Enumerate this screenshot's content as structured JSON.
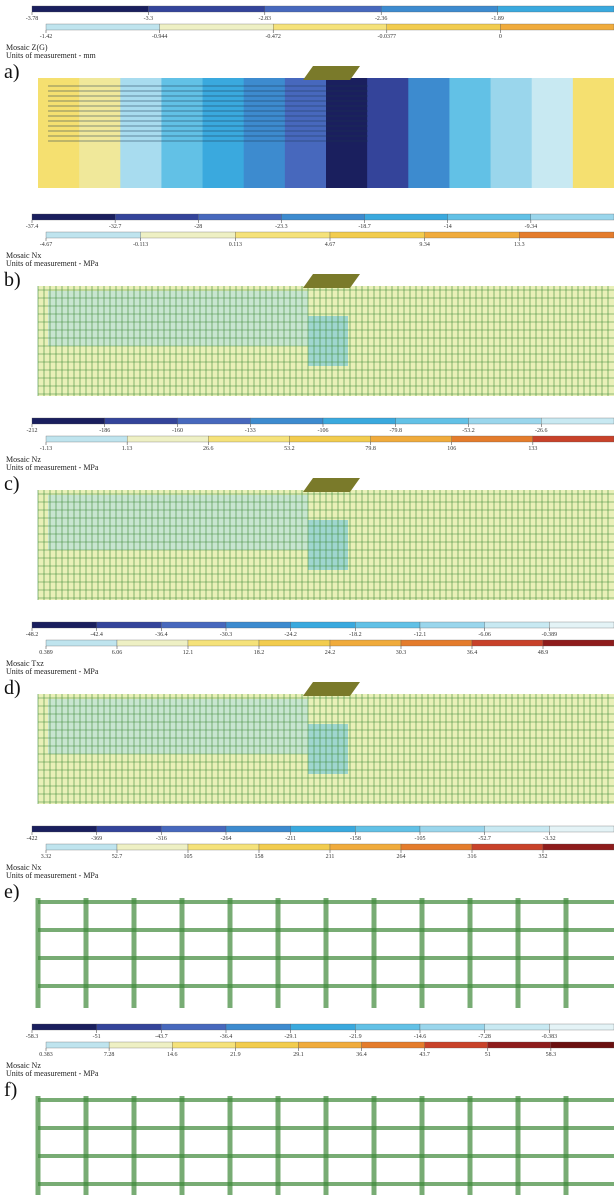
{
  "figure": {
    "panels": [
      {
        "label": "a)",
        "title": "Mosaic Z(G)",
        "units": "Units of measurement - mm",
        "scale_top": [
          "-3.78",
          "-3.3",
          "-2.83",
          "-2.36",
          "-1.89"
        ],
        "scale_bottom": [
          "-1.42",
          "-0.944",
          "-0.472",
          "-0.0377",
          "0"
        ]
      },
      {
        "label": "b)",
        "title": "Mosaic Nx",
        "units": "Units of measurement - MPa",
        "scale_top": [
          "-37.4",
          "-32.7",
          "-28",
          "-23.3",
          "-18.7",
          "-14",
          "-9.34"
        ],
        "scale_bottom": [
          "-4.67",
          "-0.113",
          "0.113",
          "4.67",
          "9.34",
          "13.3"
        ]
      },
      {
        "label": "c)",
        "title": "Mosaic Nz",
        "units": "Units of measurement - MPa",
        "scale_top": [
          "-212",
          "-186",
          "-160",
          "-133",
          "-106",
          "-79.8",
          "-53.2",
          "-26.6"
        ],
        "scale_bottom": [
          "-1.13",
          "1.13",
          "26.6",
          "53.2",
          "79.8",
          "106",
          "133"
        ]
      },
      {
        "label": "d)",
        "title": "Mosaic Txz",
        "units": "Units of measurement - MPa",
        "scale_top": [
          "-48.2",
          "-42.4",
          "-36.4",
          "-30.3",
          "-24.2",
          "-18.2",
          "-12.1",
          "-6.06",
          "-0.389"
        ],
        "scale_bottom": [
          "0.389",
          "6.06",
          "12.1",
          "18.2",
          "24.2",
          "30.3",
          "36.4",
          "48.9"
        ]
      },
      {
        "label": "e)",
        "title": "Mosaic Nx",
        "units": "Units of measurement - MPa",
        "scale_top": [
          "-422",
          "-369",
          "-316",
          "-264",
          "-211",
          "-158",
          "-105",
          "-52.7",
          "-3.32"
        ],
        "scale_bottom": [
          "3.32",
          "52.7",
          "105",
          "158",
          "211",
          "264",
          "316",
          "352"
        ]
      },
      {
        "label": "f)",
        "title": "Mosaic Nz",
        "units": "Units of measurement - MPa",
        "scale_top": [
          "-58.3",
          "-51",
          "-43.7",
          "-36.4",
          "-29.1",
          "-21.9",
          "-14.6",
          "-7.28",
          "-0.383"
        ],
        "scale_bottom": [
          "0.383",
          "7.28",
          "14.6",
          "21.9",
          "29.1",
          "36.4",
          "43.7",
          "51",
          "58.3"
        ]
      }
    ]
  }
}
